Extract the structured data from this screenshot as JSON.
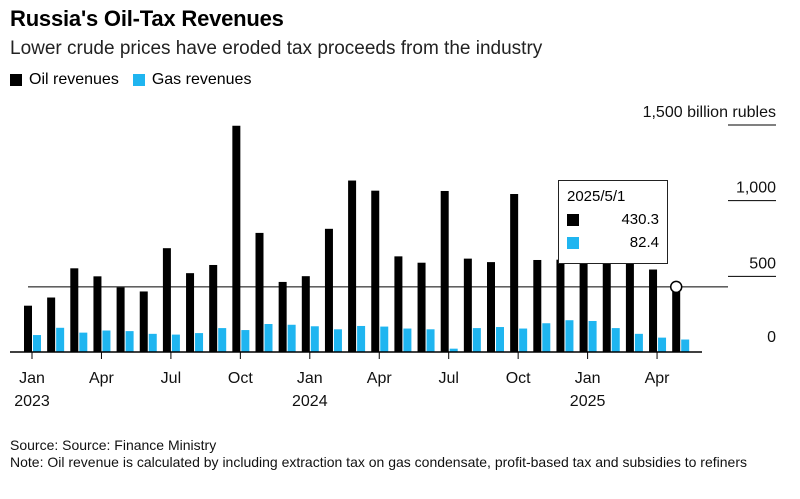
{
  "header": {
    "title": "Russia's Oil-Tax Revenues",
    "subtitle": "Lower crude prices have eroded tax proceeds from the industry"
  },
  "legend": {
    "oil_label": "Oil revenues",
    "gas_label": "Gas revenues"
  },
  "colors": {
    "oil": "#000000",
    "gas": "#1fb5f0",
    "grid": "#000000"
  },
  "tooltip": {
    "date": "2025/5/1",
    "oil_value": "430.3",
    "gas_value": "82.4"
  },
  "footer": {
    "source": "Source: Source: Finance Ministry",
    "note": "Note: Oil revenue is calculated by including extraction tax on gas condensate, profit-based tax and subsidies to refiners"
  },
  "chart_data": {
    "type": "bar",
    "categories": [
      "2023-01",
      "2023-02",
      "2023-03",
      "2023-04",
      "2023-05",
      "2023-06",
      "2023-07",
      "2023-08",
      "2023-09",
      "2023-10",
      "2023-11",
      "2023-12",
      "2024-01",
      "2024-02",
      "2024-03",
      "2024-04",
      "2024-05",
      "2024-06",
      "2024-07",
      "2024-08",
      "2024-09",
      "2024-10",
      "2024-11",
      "2024-12",
      "2025-01",
      "2025-02",
      "2025-03",
      "2025-04",
      "2025-05"
    ],
    "series": [
      {
        "name": "Oil revenues",
        "values": [
          306,
          360,
          553,
          500,
          427,
          400,
          686,
          521,
          575,
          1495,
          787,
          463,
          501,
          814,
          1133,
          1066,
          632,
          590,
          1064,
          617,
          594,
          1044,
          608,
          610,
          610,
          610,
          610,
          545,
          430.3
        ]
      },
      {
        "name": "Gas revenues",
        "values": [
          112,
          160,
          128,
          142,
          138,
          120,
          115,
          125,
          158,
          145,
          185,
          180,
          170,
          150,
          172,
          168,
          155,
          150,
          22,
          158,
          165,
          155,
          190,
          210,
          205,
          158,
          120,
          95,
          82.4
        ]
      }
    ],
    "y_ticks": [
      {
        "value": 0,
        "label": "0"
      },
      {
        "value": 500,
        "label": "500"
      },
      {
        "value": 1000,
        "label": "1,000"
      },
      {
        "value": 1500,
        "label": "1,500 billion rubles"
      }
    ],
    "x_ticks": [
      {
        "index": 0,
        "label": "Jan",
        "year": "2023"
      },
      {
        "index": 3,
        "label": "Apr",
        "year": ""
      },
      {
        "index": 6,
        "label": "Jul",
        "year": ""
      },
      {
        "index": 9,
        "label": "Oct",
        "year": ""
      },
      {
        "index": 12,
        "label": "Jan",
        "year": "2024"
      },
      {
        "index": 15,
        "label": "Apr",
        "year": ""
      },
      {
        "index": 18,
        "label": "Jul",
        "year": ""
      },
      {
        "index": 21,
        "label": "Oct",
        "year": ""
      },
      {
        "index": 24,
        "label": "Jan",
        "year": "2025"
      },
      {
        "index": 27,
        "label": "Apr",
        "year": ""
      }
    ],
    "ylim": [
      0,
      1500
    ],
    "highlight_index": 28
  }
}
